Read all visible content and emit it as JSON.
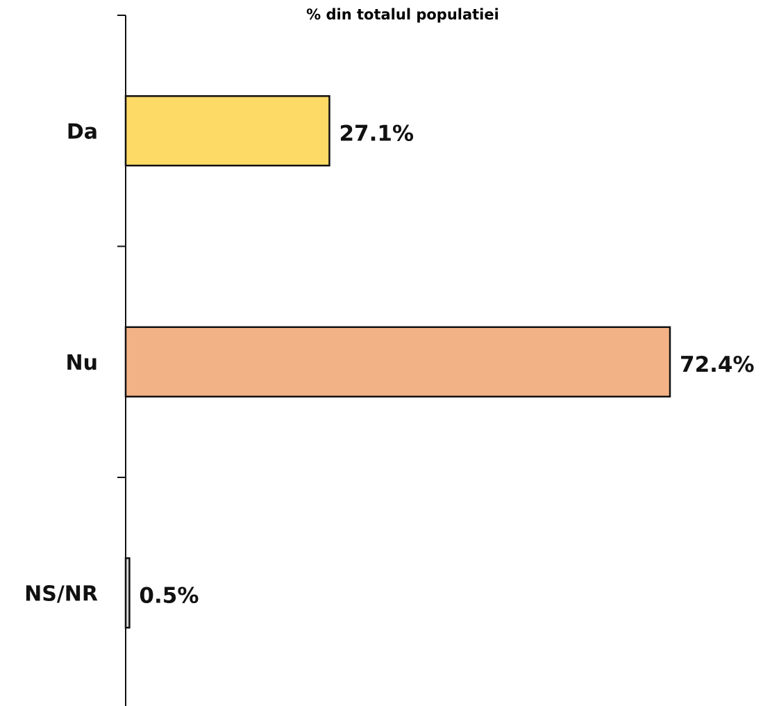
{
  "chart_data": {
    "type": "bar",
    "orientation": "horizontal",
    "title": "% din totalul populatiei",
    "xlabel": "",
    "ylabel": "",
    "categories": [
      "Da",
      "Nu",
      "NS/NR"
    ],
    "values": [
      27.1,
      72.4,
      0.5
    ],
    "value_labels": [
      "27.1%",
      "72.4%",
      "0.5%"
    ],
    "colors": [
      "#FDD966",
      "#F3B285",
      "#D9D9D9"
    ],
    "xlim": [
      0,
      72.4
    ],
    "grid": false,
    "legend": "none"
  }
}
